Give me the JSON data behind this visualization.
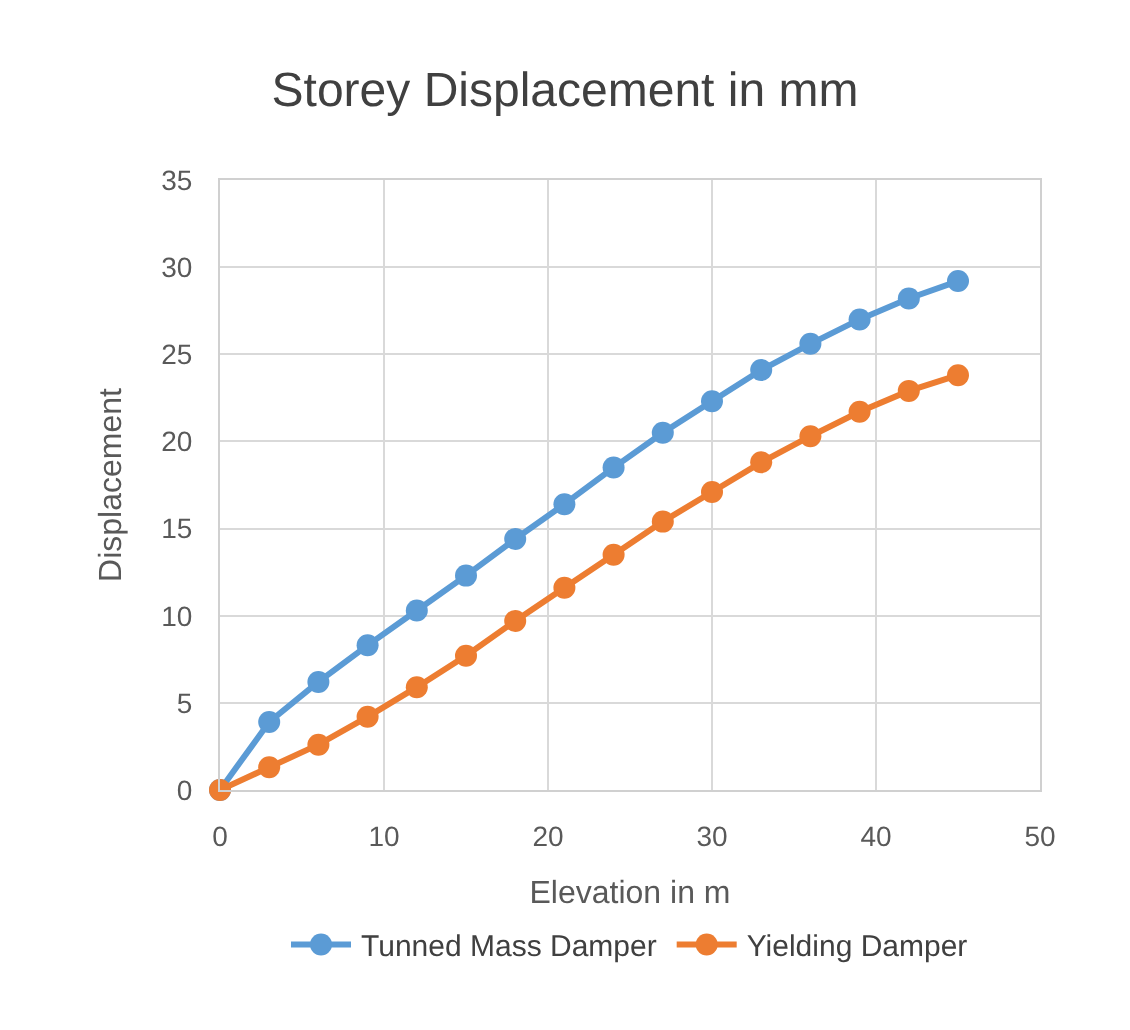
{
  "chart_data": {
    "type": "line",
    "title": "Storey Displacement in mm",
    "xlabel": "Elevation in m",
    "ylabel": "Displacement",
    "x": [
      0,
      3,
      6,
      9,
      12,
      15,
      18,
      21,
      24,
      27,
      30,
      33,
      36,
      39,
      42,
      45
    ],
    "series": [
      {
        "name": "Tunned Mass Damper",
        "color": "#5b9bd5",
        "values": [
          0,
          3.9,
          6.2,
          8.3,
          10.3,
          12.3,
          14.4,
          16.4,
          18.5,
          20.5,
          22.3,
          24.1,
          25.6,
          27.0,
          28.2,
          29.2
        ]
      },
      {
        "name": "Yielding Damper",
        "color": "#ed7d31",
        "values": [
          0,
          1.3,
          2.6,
          4.2,
          5.9,
          7.7,
          9.7,
          11.6,
          13.5,
          15.4,
          17.1,
          18.8,
          20.3,
          21.7,
          22.9,
          23.8
        ]
      }
    ],
    "xlim": [
      0,
      50
    ],
    "xticks": [
      0,
      10,
      20,
      30,
      40,
      50
    ],
    "ylim": [
      0,
      35
    ],
    "yticks": [
      0,
      5,
      10,
      15,
      20,
      25,
      30,
      35
    ],
    "grid": true,
    "legend": "bottom",
    "marker": "circle",
    "line_style": "solid"
  }
}
